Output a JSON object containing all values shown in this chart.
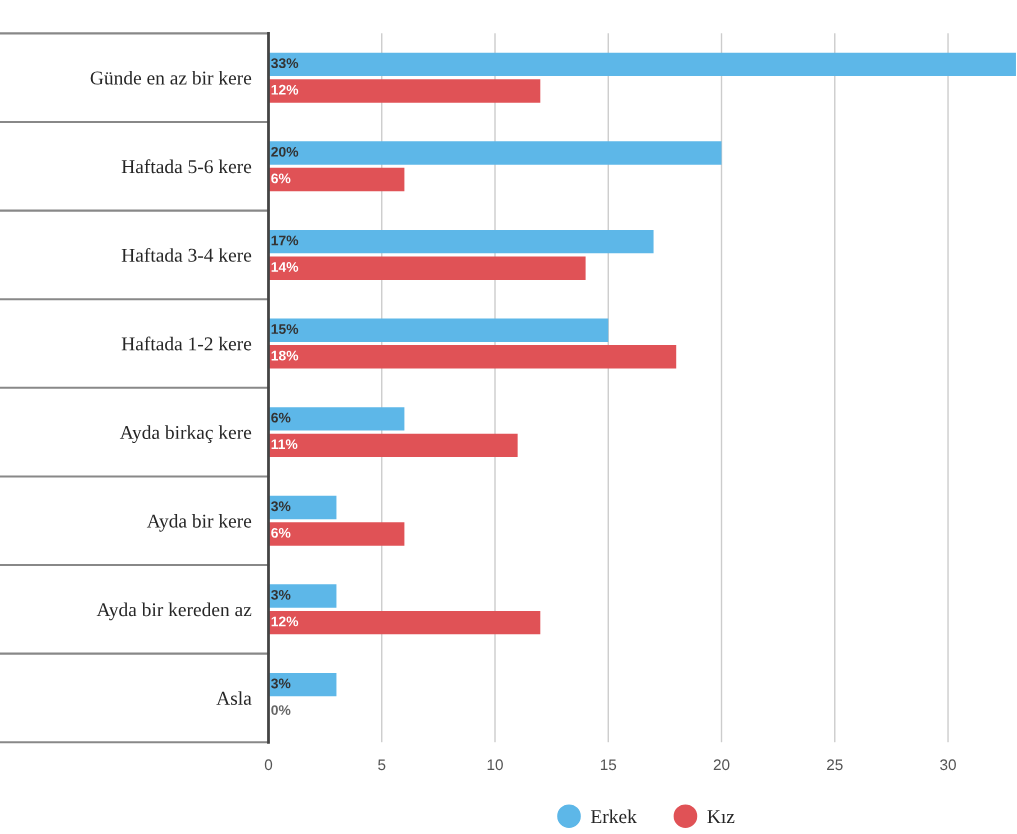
{
  "chart_data": {
    "type": "bar",
    "orientation": "horizontal",
    "categories": [
      "Günde en az bir kere",
      "Haftada 5-6 kere",
      "Haftada 3-4 kere",
      "Haftada 1-2 kere",
      "Ayda birkaç kere",
      "Ayda bir kere",
      "Ayda bir kereden az",
      "Asla"
    ],
    "series": [
      {
        "name": "Erkek",
        "color": "#5db7e8",
        "values": [
          33,
          20,
          17,
          15,
          6,
          3,
          3,
          3
        ],
        "value_labels": [
          "33%",
          "20%",
          "17%",
          "15%",
          "6%",
          "3%",
          "3%",
          "3%"
        ]
      },
      {
        "name": "Kız",
        "color": "#e05256",
        "values": [
          12,
          6,
          14,
          18,
          11,
          6,
          12,
          0
        ],
        "value_labels": [
          "12%",
          "6%",
          "14%",
          "18%",
          "11%",
          "6%",
          "12%",
          "0%"
        ]
      }
    ],
    "xlim": [
      0,
      33
    ],
    "xticks": [
      0,
      5,
      10,
      15,
      20,
      25,
      30
    ],
    "grid": "x",
    "legend": "bottom"
  }
}
